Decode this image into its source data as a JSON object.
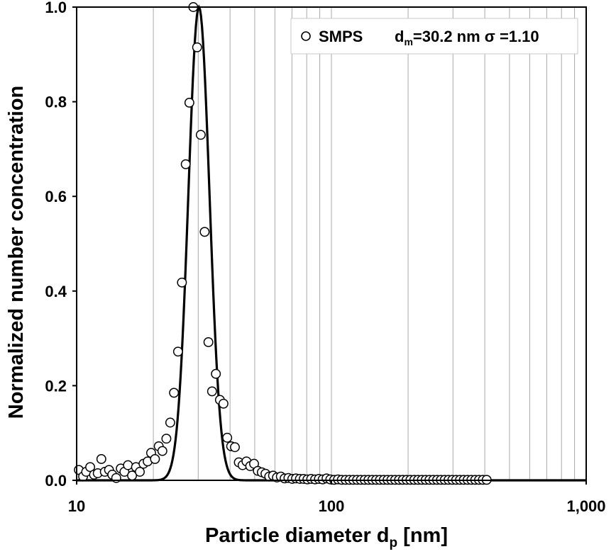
{
  "chart_data": {
    "type": "scatter",
    "xlabel": "Particle diameter d",
    "xlabel_sub": "p",
    "xlabel_suffix": " [nm]",
    "ylabel": "Normalized number concentration",
    "xscale": "log",
    "xlim": [
      10,
      1000
    ],
    "ylim": [
      0,
      1.0
    ],
    "xticks": [
      10,
      100,
      1000
    ],
    "xtick_labels": [
      "10",
      "100",
      "1,000"
    ],
    "yticks": [
      0,
      0.2,
      0.4,
      0.6,
      0.8,
      1.0
    ],
    "ytick_labels": [
      "0.0",
      "0.2",
      "0.4",
      "0.6",
      "0.8",
      "1.0"
    ],
    "grid": "vertical minor and major",
    "legend_position": "top-right",
    "legend": {
      "series_label": "SMPS",
      "annotation_main": "d",
      "annotation_sub": "m",
      "annotation_rest": "=30.2 nm σ =1.10"
    },
    "fit": {
      "type": "lognormal",
      "geometric_mean_nm": 30.2,
      "geometric_sd": 1.1,
      "peak": 1.0
    },
    "series": [
      {
        "name": "SMPS",
        "marker": "open circle",
        "x": [
          10.2,
          10.6,
          10.9,
          11.3,
          11.7,
          12.1,
          12.5,
          12.9,
          13.4,
          13.8,
          14.3,
          14.9,
          15.4,
          15.9,
          16.5,
          17.1,
          17.7,
          18.3,
          19.0,
          19.6,
          20.3,
          21.0,
          21.7,
          22.5,
          23.3,
          24.1,
          25.0,
          25.9,
          26.8,
          27.7,
          28.7,
          29.7,
          30.7,
          31.8,
          32.9,
          34.0,
          35.2,
          36.5,
          37.7,
          39.0,
          40.4,
          41.8,
          43.3,
          44.8,
          46.4,
          48.0,
          49.7,
          51.4,
          53.3,
          55.1,
          57.0,
          59.0,
          61.1,
          63.3,
          65.5,
          67.8,
          70.2,
          72.6,
          75.2,
          77.8,
          80.5,
          83.3,
          86.3,
          89.3,
          92.4,
          95.7,
          99.0,
          102.5,
          106.1,
          109.8,
          113.7,
          117.7,
          121.8,
          126.1,
          130.5,
          135.1,
          139.8,
          144.7,
          149.8,
          155.0,
          160.5,
          166.1,
          171.9,
          177.9,
          184.2,
          190.6,
          197.3,
          204.2,
          211.4,
          218.8,
          226.5,
          234.4,
          242.6,
          251.1,
          259.9,
          269.0,
          278.4,
          288.2,
          298.3,
          308.8,
          319.6,
          330.8,
          342.4,
          354.4,
          366.8,
          379.6,
          392.9,
          406.7
        ],
        "y": [
          0.022,
          0.008,
          0.018,
          0.028,
          0.012,
          0.015,
          0.045,
          0.018,
          0.022,
          0.012,
          0.005,
          0.025,
          0.018,
          0.032,
          0.01,
          0.028,
          0.018,
          0.035,
          0.04,
          0.058,
          0.045,
          0.072,
          0.062,
          0.088,
          0.122,
          0.185,
          0.272,
          0.418,
          0.668,
          0.798,
          1.0,
          0.915,
          0.73,
          0.525,
          0.292,
          0.188,
          0.225,
          0.17,
          0.162,
          0.09,
          0.072,
          0.07,
          0.038,
          0.032,
          0.04,
          0.03,
          0.035,
          0.02,
          0.017,
          0.014,
          0.008,
          0.01,
          0.006,
          0.008,
          0.004,
          0.005,
          0.003,
          0.004,
          0.003,
          0.003,
          0.002,
          0.003,
          0.002,
          0.003,
          0.002,
          0.004,
          0.002,
          0.001,
          0.002,
          0.001,
          0.001,
          0.001,
          0.001,
          0.001,
          0.001,
          0.001,
          0.001,
          0.001,
          0.001,
          0.001,
          0.001,
          0.001,
          0.001,
          0.001,
          0.001,
          0.001,
          0.001,
          0.001,
          0.001,
          0.001,
          0.001,
          0.001,
          0.001,
          0.001,
          0.001,
          0.001,
          0.001,
          0.001,
          0.001,
          0.001,
          0.001,
          0.001,
          0.001,
          0.001,
          0.001,
          0.001,
          0.001,
          0.001
        ]
      }
    ]
  }
}
